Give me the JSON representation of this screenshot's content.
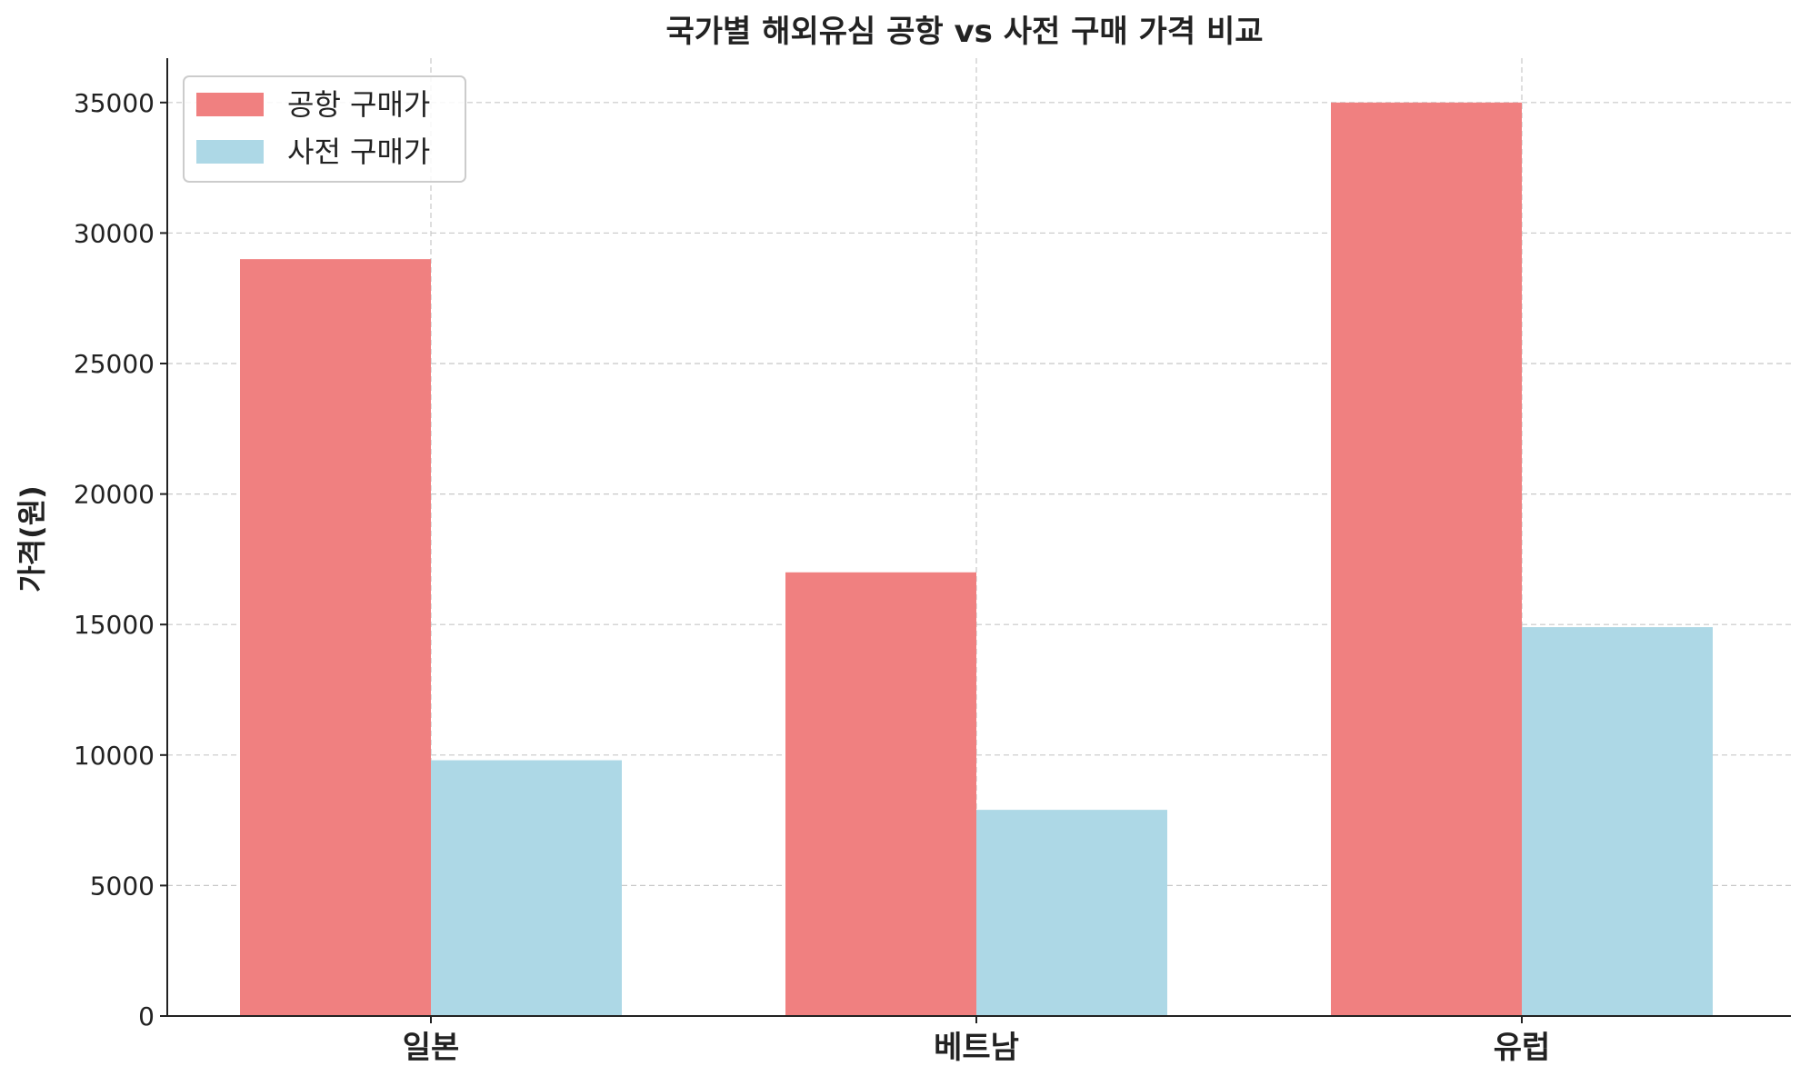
{
  "chart_data": {
    "type": "bar",
    "title": "국가별 해외유심 공항 vs 사전 구매 가격 비교",
    "xlabel": "",
    "ylabel": "가격(원)",
    "categories": [
      "일본",
      "베트남",
      "유럽"
    ],
    "series": [
      {
        "name": "공항 구매가",
        "values": [
          29000,
          17000,
          35000
        ],
        "color": "#F08080"
      },
      {
        "name": "사전 구매가",
        "values": [
          9800,
          7900,
          14900
        ],
        "color": "#ADD8E6"
      }
    ],
    "ylim": [
      0,
      36700
    ],
    "yticks": [
      0,
      5000,
      10000,
      15000,
      20000,
      25000,
      30000,
      35000
    ],
    "grid": true,
    "grid_style": "dashed",
    "legend_position": "top-left"
  }
}
